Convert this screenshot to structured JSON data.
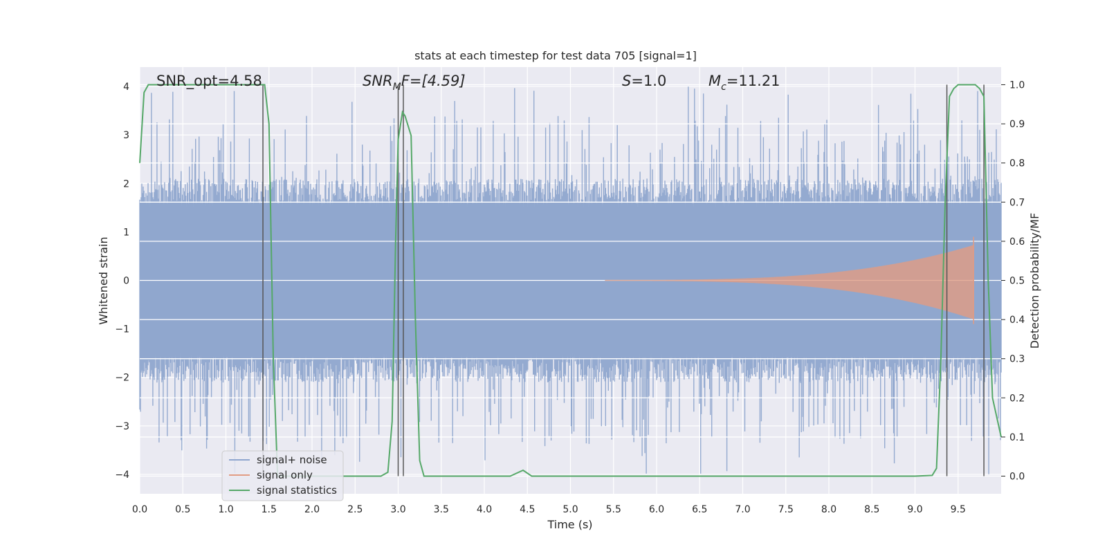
{
  "chart_data": {
    "type": "line",
    "title": "stats at each timestep for test data 705 [signal=1]",
    "xlabel": "Time (s)",
    "ylabel": "Whitened strain",
    "y2label": "Detection probability/MF",
    "xlim": [
      0.0,
      10.0
    ],
    "ylim": [
      -4.4,
      4.4
    ],
    "y2lim": [
      -0.045,
      1.045
    ],
    "xticks": [
      "0.0",
      "0.5",
      "1.0",
      "1.5",
      "2.0",
      "2.5",
      "3.0",
      "3.5",
      "4.0",
      "4.5",
      "5.0",
      "5.5",
      "6.0",
      "6.5",
      "7.0",
      "7.5",
      "8.0",
      "8.5",
      "9.0",
      "9.5"
    ],
    "yticks": [
      "−4",
      "−3",
      "−2",
      "−1",
      "0",
      "1",
      "2",
      "3",
      "4"
    ],
    "y2ticks": [
      "0.0",
      "0.1",
      "0.2",
      "0.3",
      "0.4",
      "0.5",
      "0.6",
      "0.7",
      "0.8",
      "0.9",
      "1.0"
    ],
    "grid": true,
    "legend_position": "lower-left",
    "annotations": {
      "snr_opt": "SNR_opt=4.58",
      "snr_mf_sym": "SNR",
      "snr_mf_sub": "M",
      "snr_mf_rest": "F=[4.59]",
      "s_sym": "S",
      "s_rest": "=1.0",
      "mc_sym": "M",
      "mc_sub": "c",
      "mc_rest": "=11.21"
    },
    "series": [
      {
        "name": "signal+ noise",
        "color": "#8fa6ce",
        "description_values": "noise band, typical amplitude about ±2, peaks near ±4",
        "envelope": {
          "x_range": [
            0.0,
            10.0
          ],
          "typical_abs": 1.6,
          "max_abs": 4.0,
          "seed": 705
        }
      },
      {
        "name": "signal only",
        "color": "#e19c83",
        "chirp": {
          "start": 5.4,
          "end": 9.68,
          "end_amplitude": 0.9
        }
      },
      {
        "name": "signal statistics",
        "color": "#55a868",
        "axis": "right",
        "x": [
          0.0,
          0.05,
          0.1,
          0.2,
          0.3,
          0.5,
          0.8,
          1.0,
          1.2,
          1.4,
          1.45,
          1.5,
          1.55,
          1.6,
          1.7,
          2.0,
          2.5,
          2.8,
          2.88,
          2.93,
          2.97,
          3.0,
          3.05,
          3.08,
          3.15,
          3.2,
          3.25,
          3.3,
          3.5,
          4.0,
          4.3,
          4.45,
          4.55,
          5.0,
          6.0,
          6.5,
          7.0,
          8.0,
          9.0,
          9.2,
          9.25,
          9.3,
          9.35,
          9.4,
          9.45,
          9.5,
          9.6,
          9.7,
          9.75,
          9.8,
          9.85,
          9.9,
          10.0
        ],
        "y": [
          0.8,
          0.98,
          1.0,
          1.0,
          1.0,
          1.0,
          1.0,
          1.0,
          1.0,
          1.0,
          1.0,
          0.9,
          0.3,
          0.0,
          0.0,
          0.0,
          0.0,
          0.0,
          0.01,
          0.14,
          0.6,
          0.86,
          0.93,
          0.92,
          0.87,
          0.4,
          0.04,
          0.0,
          0.0,
          0.0,
          0.0,
          0.015,
          0.0,
          0.0,
          0.0,
          0.0,
          0.0,
          0.0,
          0.0,
          0.002,
          0.02,
          0.3,
          0.7,
          0.97,
          0.99,
          1.0,
          1.0,
          1.0,
          0.99,
          0.97,
          0.5,
          0.2,
          0.1
        ]
      }
    ],
    "vlines": [
      1.43,
      3.0,
      3.06,
      9.37,
      9.8
    ]
  }
}
